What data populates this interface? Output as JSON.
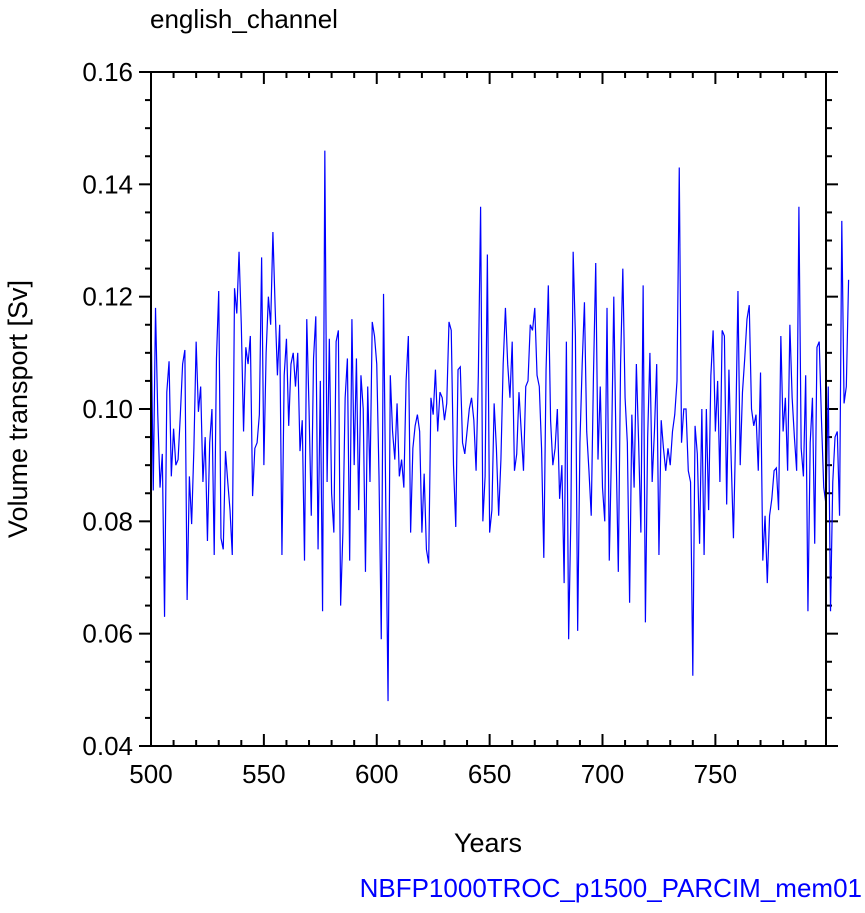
{
  "chart_data": {
    "type": "line",
    "title": "english_channel",
    "xlabel": "Years",
    "ylabel": "Volume transport [Sv]",
    "footer": "NBFP1000TROC_p1500_PARCIM_mem01",
    "xlim": [
      500,
      799
    ],
    "ylim": [
      0.04,
      0.16
    ],
    "xticks": [
      500,
      550,
      600,
      650,
      700,
      750
    ],
    "yticks": [
      0.04,
      0.06,
      0.08,
      0.1,
      0.12,
      0.14,
      0.16
    ],
    "xtick_labels": [
      "500",
      "550",
      "600",
      "650",
      "700",
      "750"
    ],
    "ytick_labels": [
      "0.04",
      "0.06",
      "0.08",
      "0.10",
      "0.12",
      "0.14",
      "0.16"
    ],
    "grid": false,
    "series": [
      {
        "color": "#0000ff",
        "x_start": 500,
        "x_step": 1,
        "values": [
          0.1175,
          0.0855,
          0.118,
          0.099,
          0.086,
          0.092,
          0.063,
          0.103,
          0.1085,
          0.088,
          0.0965,
          0.09,
          0.091,
          0.099,
          0.108,
          0.1105,
          0.066,
          0.088,
          0.0795,
          0.093,
          0.112,
          0.0995,
          0.104,
          0.087,
          0.095,
          0.0765,
          0.094,
          0.1,
          0.074,
          0.109,
          0.121,
          0.077,
          0.075,
          0.0925,
          0.087,
          0.082,
          0.074,
          0.1215,
          0.117,
          0.128,
          0.115,
          0.096,
          0.111,
          0.108,
          0.113,
          0.0845,
          0.093,
          0.094,
          0.099,
          0.127,
          0.09,
          0.11,
          0.12,
          0.115,
          0.1315,
          0.118,
          0.106,
          0.115,
          0.074,
          0.106,
          0.1125,
          0.097,
          0.108,
          0.11,
          0.104,
          0.11,
          0.0925,
          0.098,
          0.073,
          0.116,
          0.1,
          0.081,
          0.109,
          0.1165,
          0.075,
          0.105,
          0.064,
          0.146,
          0.087,
          0.1125,
          0.085,
          0.078,
          0.112,
          0.114,
          0.065,
          0.078,
          0.102,
          0.109,
          0.073,
          0.116,
          0.09,
          0.109,
          0.082,
          0.106,
          0.1,
          0.071,
          0.104,
          0.087,
          0.1155,
          0.113,
          0.108,
          0.088,
          0.059,
          0.1205,
          0.083,
          0.048,
          0.106,
          0.096,
          0.091,
          0.101,
          0.088,
          0.091,
          0.086,
          0.105,
          0.113,
          0.078,
          0.093,
          0.097,
          0.099,
          0.096,
          0.078,
          0.0885,
          0.075,
          0.0725,
          0.102,
          0.099,
          0.107,
          0.096,
          0.103,
          0.102,
          0.098,
          0.101,
          0.1155,
          0.114,
          0.09,
          0.079,
          0.107,
          0.1075,
          0.094,
          0.092,
          0.096,
          0.1,
          0.102,
          0.098,
          0.089,
          0.106,
          0.136,
          0.08,
          0.088,
          0.1275,
          0.078,
          0.082,
          0.101,
          0.093,
          0.081,
          0.091,
          0.108,
          0.118,
          0.108,
          0.102,
          0.112,
          0.089,
          0.092,
          0.103,
          0.096,
          0.089,
          0.104,
          0.105,
          0.115,
          0.114,
          0.118,
          0.106,
          0.104,
          0.093,
          0.0735,
          0.107,
          0.122,
          0.098,
          0.09,
          0.093,
          0.1,
          0.084,
          0.09,
          0.069,
          0.112,
          0.059,
          0.081,
          0.128,
          0.113,
          0.0605,
          0.094,
          0.108,
          0.119,
          0.096,
          0.089,
          0.081,
          0.106,
          0.126,
          0.091,
          0.104,
          0.086,
          0.08,
          0.118,
          0.073,
          0.093,
          0.12,
          0.093,
          0.071,
          0.108,
          0.125,
          0.102,
          0.094,
          0.0655,
          0.099,
          0.086,
          0.108,
          0.094,
          0.078,
          0.122,
          0.062,
          0.095,
          0.11,
          0.087,
          0.096,
          0.108,
          0.074,
          0.098,
          0.093,
          0.089,
          0.093,
          0.09,
          0.096,
          0.099,
          0.105,
          0.143,
          0.094,
          0.1,
          0.1,
          0.089,
          0.087,
          0.0525,
          0.097,
          0.092,
          0.076,
          0.1,
          0.074,
          0.1,
          0.082,
          0.106,
          0.114,
          0.096,
          0.105,
          0.087,
          0.114,
          0.113,
          0.083,
          0.107,
          0.091,
          0.077,
          0.096,
          0.121,
          0.09,
          0.103,
          0.109,
          0.116,
          0.1185,
          0.1,
          0.097,
          0.099,
          0.089,
          0.1065,
          0.073,
          0.081,
          0.069,
          0.081,
          0.084,
          0.089,
          0.0895,
          0.082,
          0.113,
          0.096,
          0.102,
          0.089,
          0.115,
          0.102,
          0.095,
          0.089,
          0.136,
          0.093,
          0.088,
          0.106,
          0.064,
          0.094,
          0.102,
          0.076,
          0.111,
          0.112,
          0.098,
          0.086,
          0.083,
          0.104,
          0.064,
          0.087,
          0.095,
          0.096,
          0.081,
          0.1335,
          0.101,
          0.104,
          0.123
        ]
      }
    ]
  }
}
